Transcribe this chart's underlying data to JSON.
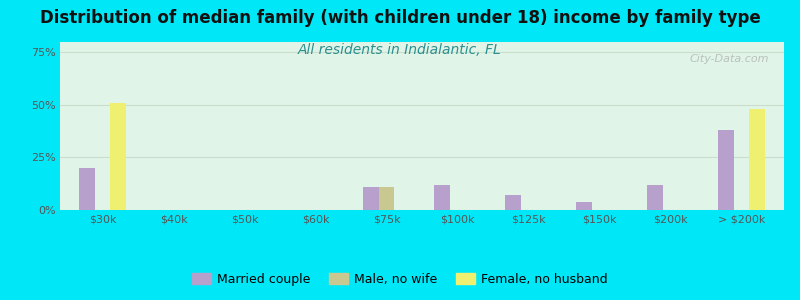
{
  "title": "Distribution of median family (with children under 18) income by family type",
  "subtitle": "All residents in Indialantic, FL",
  "categories": [
    "$30k",
    "$40k",
    "$50k",
    "$60k",
    "$75k",
    "$100k",
    "$125k",
    "$150k",
    "$200k",
    "> $200k"
  ],
  "married_couple": [
    20,
    0,
    0,
    0,
    11,
    12,
    7,
    4,
    12,
    38
  ],
  "male_no_wife": [
    0,
    0,
    0,
    0,
    11,
    0,
    0,
    0,
    0,
    0
  ],
  "female_no_husband": [
    51,
    0,
    0,
    0,
    0,
    0,
    0,
    0,
    0,
    48
  ],
  "bar_width": 0.22,
  "color_married": "#b8a0cc",
  "color_male": "#c8c890",
  "color_female": "#f0f070",
  "ylim": [
    0,
    80
  ],
  "yticks": [
    0,
    25,
    50,
    75
  ],
  "ytick_labels": [
    "0%",
    "25%",
    "50%",
    "75%"
  ],
  "background_outer": "#00e8f8",
  "background_plot": "#e0f5e8",
  "title_fontsize": 12,
  "subtitle_fontsize": 10,
  "title_color": "#111111",
  "subtitle_color": "#2a9090",
  "watermark": "City-Data.com",
  "legend_labels": [
    "Married couple",
    "Male, no wife",
    "Female, no husband"
  ],
  "grid_color": "#ccddcc",
  "tick_color": "#555555"
}
